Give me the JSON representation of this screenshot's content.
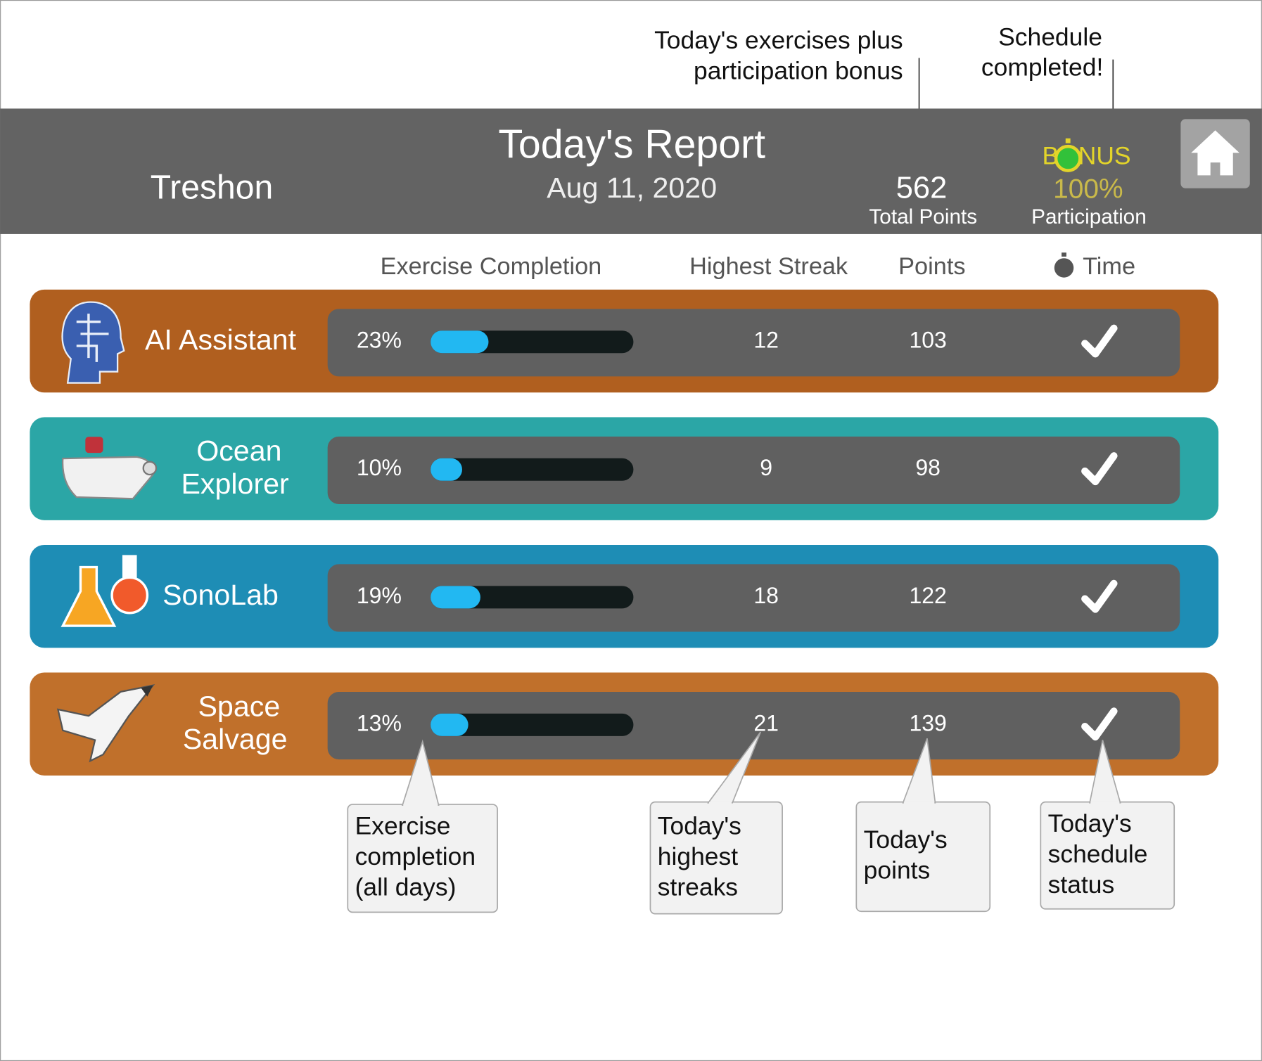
{
  "annotations": {
    "total_points_note": [
      "Today's exercises plus",
      "participation bonus"
    ],
    "bonus_note": [
      "Schedule",
      "completed!"
    ]
  },
  "header": {
    "student": "Treshon",
    "title": "Today's Report",
    "date": "Aug 11, 2020",
    "total_points": 562,
    "total_points_label": "Total Points",
    "bonus": "BONUS",
    "participation": "100%",
    "participation_label": "Participation"
  },
  "columns": [
    "Exercise Completion",
    "Highest Streak",
    "Points",
    "Time"
  ],
  "rows": [
    {
      "name": [
        "AI Assistant"
      ],
      "color": "#b05f1f",
      "completion": {
        "value": 23,
        "label": "23%"
      },
      "streak": 12,
      "points": 103,
      "schedule_complete": true
    },
    {
      "name": [
        "Ocean",
        "Explorer"
      ],
      "color": "#2ba6a6",
      "completion": {
        "value": 10,
        "label": "10%"
      },
      "streak": 9,
      "points": 98,
      "schedule_complete": true
    },
    {
      "name": [
        "SonoLab"
      ],
      "color": "#1e8db5",
      "completion": {
        "value": 19,
        "label": "19%"
      },
      "streak": 18,
      "points": 122,
      "schedule_complete": true
    },
    {
      "name": [
        "Space",
        "Salvage"
      ],
      "color": "#c0702b",
      "completion": {
        "value": 13,
        "label": "13%"
      },
      "streak": 21,
      "points": 139,
      "schedule_complete": true
    }
  ],
  "callouts": [
    [
      "Exercise",
      "completion",
      "(all days)"
    ],
    [
      "Today's",
      "highest",
      "streaks"
    ],
    [
      "Today's",
      "points"
    ],
    [
      "Today's",
      "schedule",
      "status"
    ]
  ]
}
